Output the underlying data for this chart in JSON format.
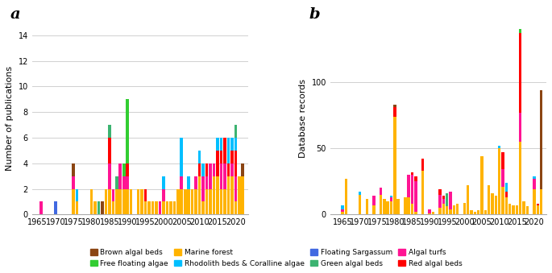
{
  "colors": {
    "Brown algal beds": "#8B4513",
    "Floating Sargassum": "#4169E1",
    "Free floating algae": "#32CD32",
    "Green algal beds": "#3CB371",
    "Marine forest": "#FFB300",
    "Algal turfs": "#FF1493",
    "Rhodolith beds & Coralline algae": "#00BFFF",
    "Red algal beds": "#FF0000"
  },
  "legend_order": [
    "Brown algal beds",
    "Free floating algae",
    "Marine forest",
    "Rhodolith beds & Coralline algae",
    "Floating Sargassum",
    "Green algal beds",
    "Algal turfs",
    "Red algal beds"
  ],
  "panel_a": {
    "title": "a",
    "ylabel": "Number of publications",
    "ylim": [
      0,
      15
    ],
    "yticks": [
      0,
      2,
      4,
      6,
      8,
      10,
      12,
      14
    ],
    "years": [
      1965,
      1966,
      1967,
      1968,
      1969,
      1970,
      1971,
      1972,
      1973,
      1974,
      1975,
      1976,
      1977,
      1978,
      1979,
      1980,
      1981,
      1982,
      1983,
      1984,
      1985,
      1986,
      1987,
      1988,
      1989,
      1990,
      1991,
      1992,
      1993,
      1994,
      1995,
      1996,
      1997,
      1998,
      1999,
      2000,
      2001,
      2002,
      2003,
      2004,
      2005,
      2006,
      2007,
      2008,
      2009,
      2010,
      2011,
      2012,
      2013,
      2014,
      2015,
      2016,
      2017,
      2018,
      2019,
      2020,
      2021,
      2022
    ],
    "data": {
      "Brown algal beds": [
        0,
        0,
        0,
        0,
        0,
        0,
        0,
        0,
        0,
        0,
        1,
        0,
        0,
        0,
        0,
        0,
        0,
        0,
        1,
        0,
        0,
        0,
        0,
        0,
        0,
        0,
        0,
        0,
        0,
        0,
        0,
        0,
        0,
        0,
        0,
        0,
        0,
        0,
        0,
        0,
        0,
        0,
        0,
        0,
        0,
        0,
        0,
        0,
        0,
        0,
        0,
        0,
        0,
        0,
        0,
        0,
        0,
        1
      ],
      "Floating Sargassum": [
        0,
        0,
        0,
        0,
        0,
        1,
        0,
        0,
        0,
        0,
        0,
        0,
        0,
        0,
        0,
        0,
        0,
        0,
        0,
        0,
        0,
        0,
        0,
        0,
        0,
        0,
        0,
        0,
        0,
        0,
        0,
        0,
        0,
        0,
        0,
        0,
        0,
        0,
        0,
        0,
        0,
        0,
        0,
        0,
        0,
        0,
        0,
        0,
        0,
        0,
        0,
        0,
        0,
        0,
        0,
        0,
        0,
        0
      ],
      "Free floating algae": [
        0,
        0,
        0,
        0,
        0,
        0,
        0,
        0,
        0,
        0,
        0,
        0,
        0,
        0,
        0,
        0,
        0,
        0,
        0,
        0,
        0,
        0,
        0,
        0,
        1,
        5,
        0,
        0,
        0,
        0,
        0,
        0,
        0,
        0,
        0,
        0,
        0,
        0,
        0,
        0,
        0,
        0,
        0,
        0,
        0,
        0,
        0,
        0,
        0,
        0,
        0,
        0,
        0,
        0,
        0,
        0,
        0,
        0
      ],
      "Green algal beds": [
        0,
        0,
        0,
        0,
        0,
        0,
        0,
        0,
        0,
        0,
        0,
        0,
        0,
        0,
        0,
        0,
        0,
        1,
        0,
        0,
        1,
        0,
        1,
        0,
        0,
        0,
        0,
        0,
        0,
        0,
        0,
        0,
        0,
        0,
        0,
        0,
        0,
        0,
        0,
        0,
        0,
        0,
        0,
        0,
        0,
        0,
        0,
        0,
        0,
        0,
        0,
        0,
        0,
        0,
        0,
        1,
        0,
        0
      ],
      "Marine forest": [
        0,
        0,
        0,
        0,
        0,
        0,
        0,
        0,
        0,
        0,
        2,
        1,
        0,
        0,
        0,
        2,
        1,
        0,
        0,
        2,
        2,
        1,
        2,
        2,
        2,
        2,
        2,
        0,
        2,
        2,
        1,
        1,
        1,
        1,
        0,
        1,
        1,
        1,
        1,
        2,
        2,
        2,
        2,
        2,
        2,
        3,
        1,
        2,
        2,
        3,
        3,
        2,
        2,
        3,
        3,
        1,
        3,
        3
      ],
      "Algal turfs": [
        0,
        1,
        0,
        0,
        0,
        0,
        0,
        0,
        0,
        0,
        1,
        0,
        0,
        0,
        0,
        0,
        0,
        0,
        0,
        0,
        2,
        1,
        0,
        2,
        1,
        1,
        0,
        0,
        0,
        0,
        0,
        0,
        0,
        0,
        1,
        1,
        0,
        0,
        0,
        0,
        1,
        0,
        0,
        0,
        1,
        0,
        2,
        1,
        2,
        1,
        0,
        2,
        2,
        0,
        1,
        2,
        0,
        0
      ],
      "Rhodolith beds & Coralline algae": [
        0,
        0,
        0,
        0,
        0,
        0,
        0,
        0,
        0,
        0,
        0,
        1,
        0,
        0,
        0,
        0,
        0,
        0,
        0,
        0,
        0,
        0,
        0,
        0,
        0,
        0,
        0,
        0,
        0,
        0,
        0,
        0,
        0,
        0,
        0,
        1,
        0,
        0,
        0,
        0,
        3,
        0,
        1,
        0,
        0,
        1,
        1,
        0,
        0,
        0,
        1,
        1,
        0,
        2,
        1,
        1,
        0,
        0
      ],
      "Red algal beds": [
        0,
        0,
        0,
        0,
        0,
        0,
        0,
        0,
        0,
        0,
        0,
        0,
        0,
        0,
        0,
        0,
        0,
        0,
        0,
        0,
        2,
        0,
        0,
        0,
        0,
        1,
        0,
        0,
        0,
        0,
        1,
        0,
        0,
        0,
        0,
        0,
        0,
        0,
        0,
        0,
        0,
        0,
        0,
        0,
        0,
        1,
        0,
        1,
        0,
        0,
        2,
        1,
        2,
        1,
        1,
        2,
        0,
        0
      ]
    }
  },
  "panel_b": {
    "title": "b",
    "ylabel": "Database records",
    "ylim": [
      0,
      145
    ],
    "yticks": [
      0,
      50,
      100
    ],
    "years": [
      1963,
      1964,
      1965,
      1966,
      1967,
      1968,
      1969,
      1970,
      1971,
      1972,
      1973,
      1974,
      1975,
      1976,
      1977,
      1978,
      1979,
      1980,
      1981,
      1982,
      1983,
      1984,
      1985,
      1986,
      1987,
      1988,
      1989,
      1990,
      1991,
      1992,
      1993,
      1994,
      1995,
      1996,
      1997,
      1998,
      1999,
      2000,
      2001,
      2002,
      2003,
      2004,
      2005,
      2006,
      2007,
      2008,
      2009,
      2010,
      2011,
      2012,
      2013,
      2014,
      2015,
      2016,
      2017,
      2018,
      2019,
      2020,
      2021,
      2022
    ],
    "data": {
      "Brown algal beds": [
        0,
        0,
        0,
        0,
        0,
        0,
        0,
        0,
        0,
        0,
        0,
        0,
        0,
        0,
        0,
        0,
        0,
        2,
        0,
        0,
        0,
        0,
        0,
        0,
        0,
        0,
        0,
        0,
        0,
        0,
        0,
        0,
        0,
        0,
        0,
        0,
        0,
        0,
        0,
        0,
        0,
        0,
        0,
        0,
        0,
        0,
        0,
        0,
        0,
        0,
        0,
        0,
        0,
        0,
        0,
        0,
        0,
        0,
        0,
        75
      ],
      "Floating Sargassum": [
        0,
        0,
        0,
        0,
        0,
        0,
        0,
        0,
        0,
        0,
        0,
        0,
        0,
        0,
        0,
        0,
        0,
        0,
        0,
        0,
        0,
        0,
        0,
        0,
        0,
        0,
        0,
        0,
        0,
        0,
        0,
        0,
        0,
        0,
        0,
        0,
        0,
        0,
        0,
        0,
        0,
        0,
        0,
        0,
        0,
        0,
        0,
        0,
        0,
        0,
        0,
        0,
        0,
        0,
        0,
        0,
        0,
        0,
        0,
        0
      ],
      "Free floating algae": [
        0,
        0,
        0,
        0,
        0,
        0,
        0,
        0,
        0,
        0,
        0,
        0,
        0,
        0,
        0,
        0,
        0,
        0,
        0,
        0,
        0,
        0,
        0,
        0,
        0,
        0,
        0,
        0,
        0,
        0,
        0,
        0,
        0,
        0,
        0,
        0,
        0,
        0,
        0,
        0,
        0,
        0,
        0,
        0,
        0,
        0,
        0,
        0,
        0,
        0,
        0,
        0,
        0,
        3,
        0,
        0,
        0,
        0,
        0,
        0
      ],
      "Green algal beds": [
        0,
        0,
        0,
        0,
        0,
        0,
        0,
        0,
        0,
        0,
        0,
        0,
        0,
        0,
        0,
        0,
        0,
        0,
        0,
        0,
        0,
        0,
        0,
        0,
        0,
        0,
        0,
        0,
        0,
        0,
        0,
        0,
        10,
        0,
        0,
        0,
        0,
        0,
        0,
        0,
        0,
        0,
        0,
        0,
        0,
        0,
        0,
        0,
        0,
        0,
        0,
        0,
        0,
        0,
        0,
        0,
        0,
        0,
        0,
        0
      ],
      "Marine forest": [
        0,
        0,
        2,
        27,
        0,
        0,
        0,
        15,
        0,
        12,
        0,
        7,
        0,
        15,
        12,
        10,
        10,
        74,
        12,
        0,
        13,
        13,
        8,
        2,
        0,
        33,
        0,
        1,
        2,
        0,
        5,
        8,
        6,
        4,
        7,
        8,
        0,
        9,
        22,
        3,
        2,
        3,
        44,
        3,
        22,
        16,
        14,
        50,
        21,
        13,
        8,
        7,
        7,
        55,
        10,
        6,
        0,
        19,
        7,
        19
      ],
      "Algal turfs": [
        0,
        0,
        2,
        0,
        0,
        0,
        0,
        0,
        0,
        0,
        0,
        7,
        0,
        5,
        0,
        0,
        3,
        0,
        0,
        0,
        0,
        17,
        22,
        23,
        0,
        0,
        0,
        3,
        0,
        0,
        10,
        4,
        0,
        13,
        0,
        0,
        0,
        0,
        0,
        0,
        0,
        0,
        0,
        0,
        0,
        0,
        0,
        0,
        13,
        0,
        0,
        0,
        0,
        22,
        0,
        0,
        0,
        8,
        0,
        0
      ],
      "Rhodolith beds & Coralline algae": [
        0,
        0,
        3,
        0,
        0,
        0,
        0,
        2,
        0,
        0,
        0,
        0,
        0,
        0,
        0,
        0,
        1,
        0,
        0,
        0,
        0,
        0,
        0,
        0,
        0,
        0,
        0,
        0,
        0,
        0,
        0,
        0,
        0,
        0,
        0,
        0,
        0,
        0,
        0,
        0,
        0,
        0,
        0,
        0,
        0,
        0,
        0,
        2,
        0,
        7,
        0,
        0,
        0,
        0,
        0,
        0,
        0,
        2,
        0,
        0
      ],
      "Red algal beds": [
        0,
        0,
        0,
        0,
        0,
        0,
        0,
        0,
        0,
        0,
        0,
        0,
        0,
        0,
        0,
        0,
        0,
        7,
        0,
        0,
        0,
        0,
        2,
        4,
        0,
        9,
        0,
        0,
        0,
        0,
        4,
        2,
        0,
        0,
        0,
        0,
        0,
        0,
        0,
        0,
        0,
        0,
        0,
        0,
        0,
        0,
        0,
        0,
        13,
        4,
        0,
        0,
        0,
        60,
        0,
        0,
        0,
        0,
        1,
        0
      ]
    }
  },
  "background_color": "#ffffff",
  "plot_bg_color": "#ffffff",
  "grid_color": "#d0d0d0",
  "bar_width": 0.8,
  "xticks_a": [
    1965,
    1970,
    1975,
    1980,
    1985,
    1990,
    1995,
    2000,
    2005,
    2010,
    2015,
    2020
  ],
  "xticks_b": [
    1965,
    1970,
    1975,
    1980,
    1985,
    1990,
    1995,
    2000,
    2005,
    2010,
    2015,
    2020
  ]
}
